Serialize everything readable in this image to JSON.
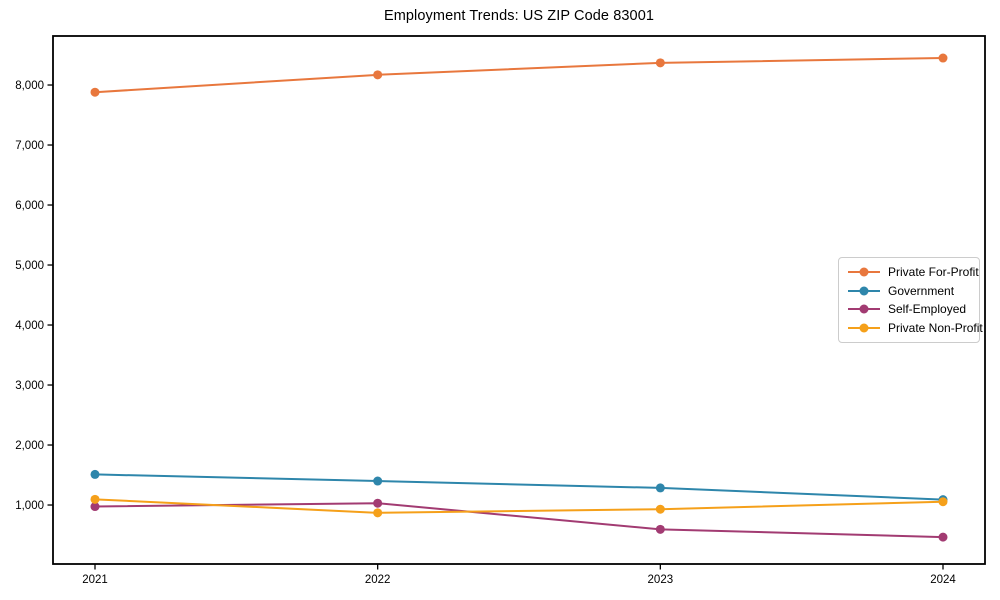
{
  "title": "Employment Trends: US ZIP Code 83001",
  "chart_data": {
    "type": "line",
    "title": "Employment Trends: US ZIP Code 83001",
    "xlabel": "",
    "ylabel": "",
    "grid": false,
    "legend_position": "center right",
    "x": [
      "2021",
      "2022",
      "2023",
      "2024"
    ],
    "series": [
      {
        "name": "Private For-Profit",
        "color": "#e8773d",
        "values": [
          7880,
          8170,
          8370,
          8450
        ]
      },
      {
        "name": "Government",
        "color": "#2e86ab",
        "values": [
          1510,
          1400,
          1285,
          1090
        ]
      },
      {
        "name": "Self-Employed",
        "color": "#a23b72",
        "values": [
          975,
          1030,
          595,
          465
        ]
      },
      {
        "name": "Private Non-Profit",
        "color": "#f5a01a",
        "values": [
          1095,
          870,
          930,
          1055
        ]
      }
    ],
    "ylim": [
      17,
      8817
    ],
    "yticks": [
      1000,
      2000,
      3000,
      4000,
      5000,
      6000,
      7000,
      8000
    ],
    "ytick_labels": [
      "1,000",
      "2,000",
      "3,000",
      "4,000",
      "5,000",
      "6,000",
      "7,000",
      "8,000"
    ]
  }
}
